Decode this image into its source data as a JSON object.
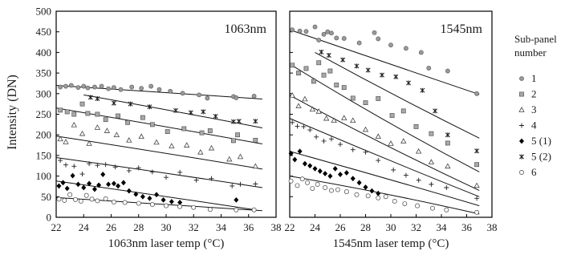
{
  "y_axis": {
    "label": "Intensity (DN)",
    "ticks": [
      0,
      50,
      100,
      150,
      200,
      250,
      300,
      350,
      400,
      450,
      500
    ],
    "ylim": [
      0,
      500
    ]
  },
  "legend": {
    "title": "Sub-panel number",
    "items": [
      {
        "label": "1",
        "marker": "circle-gray"
      },
      {
        "label": "2",
        "marker": "square-gray"
      },
      {
        "label": "3",
        "marker": "triangle-open"
      },
      {
        "label": "4",
        "marker": "plus"
      },
      {
        "label": "5 (1)",
        "marker": "diamond-black"
      },
      {
        "label": "5 (2)",
        "marker": "x-star"
      },
      {
        "label": "6",
        "marker": "circle-open"
      }
    ]
  },
  "chart_data": [
    {
      "type": "scatter",
      "panel_label": "1063nm",
      "xlabel": "1063nm laser temp (°C)",
      "ylabel": "Intensity (DN)",
      "xlim": [
        22,
        38
      ],
      "ylim": [
        0,
        500
      ],
      "xticks": [
        22,
        24,
        26,
        28,
        30,
        32,
        34,
        36,
        38
      ],
      "grid": false,
      "series": [
        {
          "name": "1",
          "marker": "circle-gray",
          "x": [
            22.3,
            22.7,
            23.1,
            23.6,
            24.0,
            24.3,
            24.8,
            25.3,
            25.8,
            26.2,
            26.7,
            27.5,
            28.2,
            28.9,
            29.5,
            30.3,
            31.2,
            32.4,
            33.0,
            34.9,
            35.1,
            36.4
          ],
          "y": [
            316,
            318,
            320,
            315,
            318,
            314,
            316,
            318,
            312,
            315,
            310,
            316,
            313,
            318,
            310,
            306,
            301,
            297,
            289,
            293,
            290,
            294
          ],
          "fit": [
            [
              22,
              320
            ],
            [
              37,
              287
            ]
          ]
        },
        {
          "name": "5 (2)",
          "marker": "x-star",
          "x": [
            24.5,
            25.0,
            26.2,
            27.4,
            28.8,
            30.7,
            31.8,
            32.7,
            33.6,
            34.9,
            35.3,
            36.5
          ],
          "y": [
            291,
            288,
            277,
            275,
            268,
            259,
            254,
            256,
            245,
            232,
            233,
            233
          ],
          "fit": [
            [
              24,
              297
            ],
            [
              37,
              217
            ]
          ]
        },
        {
          "name": "2",
          "marker": "square-gray",
          "x": [
            22.3,
            22.8,
            23.3,
            23.9,
            24.3,
            25.0,
            25.6,
            26.5,
            27.2,
            28.3,
            29.0,
            30.1,
            31.3,
            32.6,
            33.2,
            34.9,
            35.2,
            36.5
          ],
          "y": [
            260,
            256,
            250,
            275,
            252,
            250,
            237,
            246,
            230,
            242,
            225,
            208,
            215,
            205,
            210,
            186,
            200,
            187
          ],
          "fit": [
            [
              22,
              265
            ],
            [
              37,
              178
            ]
          ]
        },
        {
          "name": "3",
          "marker": "triangle-open",
          "x": [
            22.3,
            22.7,
            23.3,
            23.9,
            24.4,
            25.0,
            25.7,
            26.4,
            27.3,
            28.2,
            29.3,
            30.4,
            31.5,
            32.5,
            33.3,
            34.6,
            35.4,
            36.5
          ],
          "y": [
            190,
            183,
            224,
            203,
            179,
            218,
            210,
            200,
            187,
            196,
            182,
            173,
            175,
            158,
            168,
            141,
            147,
            124
          ],
          "fit": [
            [
              22,
              197
            ],
            [
              37,
              117
            ]
          ]
        },
        {
          "name": "4",
          "marker": "plus",
          "x": [
            22.3,
            22.7,
            23.3,
            23.9,
            24.4,
            25.0,
            25.6,
            26.3,
            27.3,
            28.0,
            29.0,
            30.0,
            31.0,
            32.2,
            33.3,
            34.8,
            35.4,
            36.5
          ],
          "y": [
            138,
            127,
            124,
            105,
            130,
            126,
            128,
            122,
            113,
            120,
            110,
            97,
            109,
            90,
            94,
            76,
            80,
            81
          ],
          "fit": [
            [
              22,
              145
            ],
            [
              37,
              72
            ]
          ]
        },
        {
          "name": "5 (1)",
          "marker": "diamond-black",
          "x": [
            22.2,
            22.5,
            22.8,
            23.2,
            23.6,
            24.0,
            24.4,
            24.8,
            25.1,
            25.4,
            25.8,
            26.2,
            26.5,
            26.9,
            27.3,
            27.8,
            28.3,
            28.8,
            29.3,
            29.8,
            30.4,
            31.0,
            35.1
          ],
          "y": [
            76,
            84,
            70,
            101,
            80,
            72,
            82,
            68,
            78,
            104,
            80,
            82,
            76,
            84,
            64,
            56,
            50,
            46,
            55,
            42,
            38,
            36,
            42
          ],
          "fit": [
            [
              22,
              88
            ],
            [
              36.5,
              18
            ]
          ]
        },
        {
          "name": "6",
          "marker": "circle-open",
          "x": [
            22.2,
            22.6,
            23.0,
            23.4,
            23.8,
            24.2,
            24.6,
            25.0,
            25.6,
            26.2,
            27.0,
            28.0,
            29.0,
            30.0,
            31.0,
            32.0,
            33.2,
            35.1,
            36.4
          ],
          "y": [
            44,
            41,
            55,
            43,
            39,
            53,
            44,
            40,
            45,
            37,
            36,
            34,
            31,
            28,
            26,
            24,
            19,
            18,
            18
          ],
          "fit": [
            [
              22,
              48
            ],
            [
              37,
              16
            ]
          ]
        }
      ]
    },
    {
      "type": "scatter",
      "panel_label": "1545nm",
      "xlabel": "1545nm laser temp (°C)",
      "ylabel": "Intensity (DN)",
      "xlim": [
        22,
        38
      ],
      "ylim": [
        0,
        500
      ],
      "xticks": [
        22,
        24,
        26,
        28,
        30,
        32,
        34,
        36,
        38
      ],
      "grid": false,
      "series": [
        {
          "name": "1",
          "marker": "circle-gray",
          "x": [
            22.2,
            22.8,
            23.3,
            24.0,
            24.3,
            24.7,
            25.0,
            25.3,
            25.7,
            26.3,
            27.5,
            28.7,
            29.0,
            30.0,
            31.2,
            32.4,
            33.0,
            34.5,
            36.8
          ],
          "y": [
            455,
            452,
            451,
            462,
            430,
            444,
            450,
            447,
            435,
            434,
            423,
            448,
            433,
            418,
            410,
            400,
            362,
            355,
            300
          ],
          "fit": [
            [
              22,
              455
            ],
            [
              37,
              298
            ]
          ]
        },
        {
          "name": "5 (2)",
          "marker": "x-star",
          "x": [
            24.5,
            25.1,
            26.2,
            27.3,
            28.2,
            29.3,
            30.4,
            31.4,
            32.5,
            33.5,
            34.5,
            36.8
          ],
          "y": [
            401,
            393,
            382,
            367,
            357,
            345,
            341,
            326,
            308,
            258,
            200,
            161
          ],
          "fit": [
            [
              24,
              400
            ],
            [
              37,
              192
            ]
          ]
        },
        {
          "name": "2",
          "marker": "square-gray",
          "x": [
            22.2,
            22.7,
            23.3,
            23.9,
            24.3,
            24.7,
            25.2,
            25.7,
            26.3,
            27.0,
            28.0,
            29.0,
            30.1,
            31.0,
            32.0,
            33.2,
            34.5,
            36.8
          ],
          "y": [
            369,
            350,
            361,
            330,
            375,
            345,
            355,
            321,
            315,
            289,
            278,
            288,
            247,
            258,
            220,
            203,
            180,
            128
          ],
          "fit": [
            [
              22,
              372
            ],
            [
              37,
              110
            ]
          ]
        },
        {
          "name": "3",
          "marker": "triangle-open",
          "x": [
            22.2,
            22.7,
            23.2,
            23.8,
            24.3,
            24.9,
            25.5,
            26.3,
            27.0,
            28.0,
            29.0,
            30.0,
            31.0,
            32.2,
            33.2,
            34.5,
            36.8
          ],
          "y": [
            296,
            270,
            287,
            262,
            257,
            240,
            235,
            241,
            235,
            213,
            196,
            179,
            185,
            160,
            134,
            124,
            77
          ],
          "fit": [
            [
              22,
              296
            ],
            [
              37,
              65
            ]
          ]
        },
        {
          "name": "4",
          "marker": "plus",
          "x": [
            22.2,
            22.6,
            23.1,
            23.6,
            24.1,
            24.7,
            25.3,
            26.0,
            27.0,
            28.0,
            29.0,
            30.2,
            31.2,
            32.2,
            33.2,
            34.4,
            36.8
          ],
          "y": [
            230,
            221,
            220,
            212,
            195,
            185,
            190,
            177,
            164,
            158,
            138,
            115,
            102,
            90,
            80,
            72,
            46
          ],
          "fit": [
            [
              22,
              240
            ],
            [
              37,
              50
            ]
          ]
        },
        {
          "name": "5 (1)",
          "marker": "diamond-black",
          "x": [
            22.1,
            22.4,
            22.8,
            23.2,
            23.6,
            24.0,
            24.4,
            24.8,
            25.2,
            25.6,
            26.0,
            26.5,
            27.0,
            27.5,
            28.0,
            28.5,
            29.0
          ],
          "y": [
            155,
            140,
            160,
            130,
            125,
            118,
            112,
            106,
            100,
            118,
            104,
            108,
            94,
            84,
            73,
            64,
            58
          ],
          "fit": [
            [
              22,
              160
            ],
            [
              37,
              28
            ]
          ]
        },
        {
          "name": "6",
          "marker": "circle-open",
          "x": [
            22.1,
            22.6,
            23.0,
            23.4,
            23.8,
            24.2,
            24.8,
            25.3,
            25.8,
            26.5,
            27.3,
            28.2,
            29.0,
            29.6,
            30.3,
            31.1,
            32.1,
            33.3,
            34.4,
            36.8
          ],
          "y": [
            88,
            77,
            93,
            84,
            70,
            80,
            72,
            65,
            67,
            62,
            55,
            52,
            47,
            50,
            39,
            33,
            28,
            22,
            18,
            12
          ],
          "fit": [
            [
              22,
              100
            ],
            [
              37,
              8
            ]
          ]
        }
      ]
    }
  ]
}
